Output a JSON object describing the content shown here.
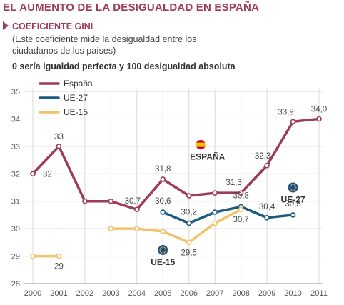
{
  "header": {
    "title": "EL AUMENTO DE LA DESIGUALDAD EN ESPAÑA",
    "subtitle": "COEFICIENTE GINI",
    "note": "(Este coeficiente mide la desigualdad entre los ciudadanos de los países)",
    "scale_note": "0 sería igualdad perfecta y 100 desigualdad absoluta"
  },
  "colors": {
    "espana": "#9e3b59",
    "ue27": "#1d5b7e",
    "ue15": "#f2c26b",
    "grid": "#d9d9d9",
    "axis": "#999999"
  },
  "chart_data": {
    "type": "line",
    "title": "COEFICIENTE GINI",
    "xlabel": "",
    "ylabel": "",
    "x": [
      2000,
      2001,
      2002,
      2003,
      2004,
      2005,
      2006,
      2007,
      2008,
      2009,
      2010,
      2011
    ],
    "ylim": [
      28,
      35
    ],
    "yticks": [
      28,
      29,
      30,
      31,
      32,
      33,
      34,
      35
    ],
    "grid": true,
    "legend": "top-left",
    "series": [
      {
        "key": "espana",
        "name": "España",
        "values": [
          32,
          33,
          31,
          31,
          30.7,
          31.8,
          31.2,
          31.3,
          31.3,
          32.3,
          33.9,
          34.0
        ]
      },
      {
        "key": "ue27",
        "name": "UE-27",
        "values": [
          null,
          null,
          null,
          null,
          null,
          30.6,
          30.2,
          30.6,
          30.8,
          30.4,
          30.5,
          null
        ]
      },
      {
        "key": "ue15",
        "name": "UE-15",
        "values": [
          29,
          29,
          null,
          30,
          30,
          29.9,
          29.5,
          30.2,
          30.7,
          null,
          null,
          null
        ]
      }
    ],
    "data_labels": [
      {
        "text": "32",
        "x": 2000,
        "y": 32,
        "series": "espana"
      },
      {
        "text": "33",
        "x": 2001,
        "y": 33,
        "series": "espana"
      },
      {
        "text": "30,7",
        "x": 2004,
        "y": 30.7,
        "series": "espana"
      },
      {
        "text": "31,8",
        "x": 2005,
        "y": 31.8,
        "series": "espana"
      },
      {
        "text": "31,3",
        "x": 2008,
        "y": 31.3,
        "series": "espana"
      },
      {
        "text": "32,3",
        "x": 2009,
        "y": 32.3,
        "series": "espana"
      },
      {
        "text": "33,9",
        "x": 2010,
        "y": 33.9,
        "series": "espana"
      },
      {
        "text": "34,0",
        "x": 2011,
        "y": 34.0,
        "series": "espana"
      },
      {
        "text": "30,6",
        "x": 2005,
        "y": 30.6,
        "series": "ue27"
      },
      {
        "text": "30,2",
        "x": 2006,
        "y": 30.2,
        "series": "ue27"
      },
      {
        "text": "30,8",
        "x": 2008,
        "y": 30.8,
        "series": "ue27"
      },
      {
        "text": "30,4",
        "x": 2009,
        "y": 30.4,
        "series": "ue27"
      },
      {
        "text": "30,5",
        "x": 2010,
        "y": 30.5,
        "series": "ue27"
      },
      {
        "text": "29",
        "x": 2001,
        "y": 29,
        "series": "ue15"
      },
      {
        "text": "29,5",
        "x": 2006,
        "y": 29.5,
        "series": "ue15"
      },
      {
        "text": "30,7",
        "x": 2008,
        "y": 30.7,
        "series": "ue15"
      }
    ],
    "annotations": [
      {
        "text": "ESPAÑA",
        "icon": "spain-flag-icon",
        "x": 2007,
        "y": 32.2
      },
      {
        "text": "UE-15",
        "icon": "eu-flag-icon",
        "x": 2005,
        "y": 29.3
      },
      {
        "text": "UE-27",
        "icon": "eu-flag-icon",
        "x": 2010,
        "y": 31.5
      }
    ]
  }
}
